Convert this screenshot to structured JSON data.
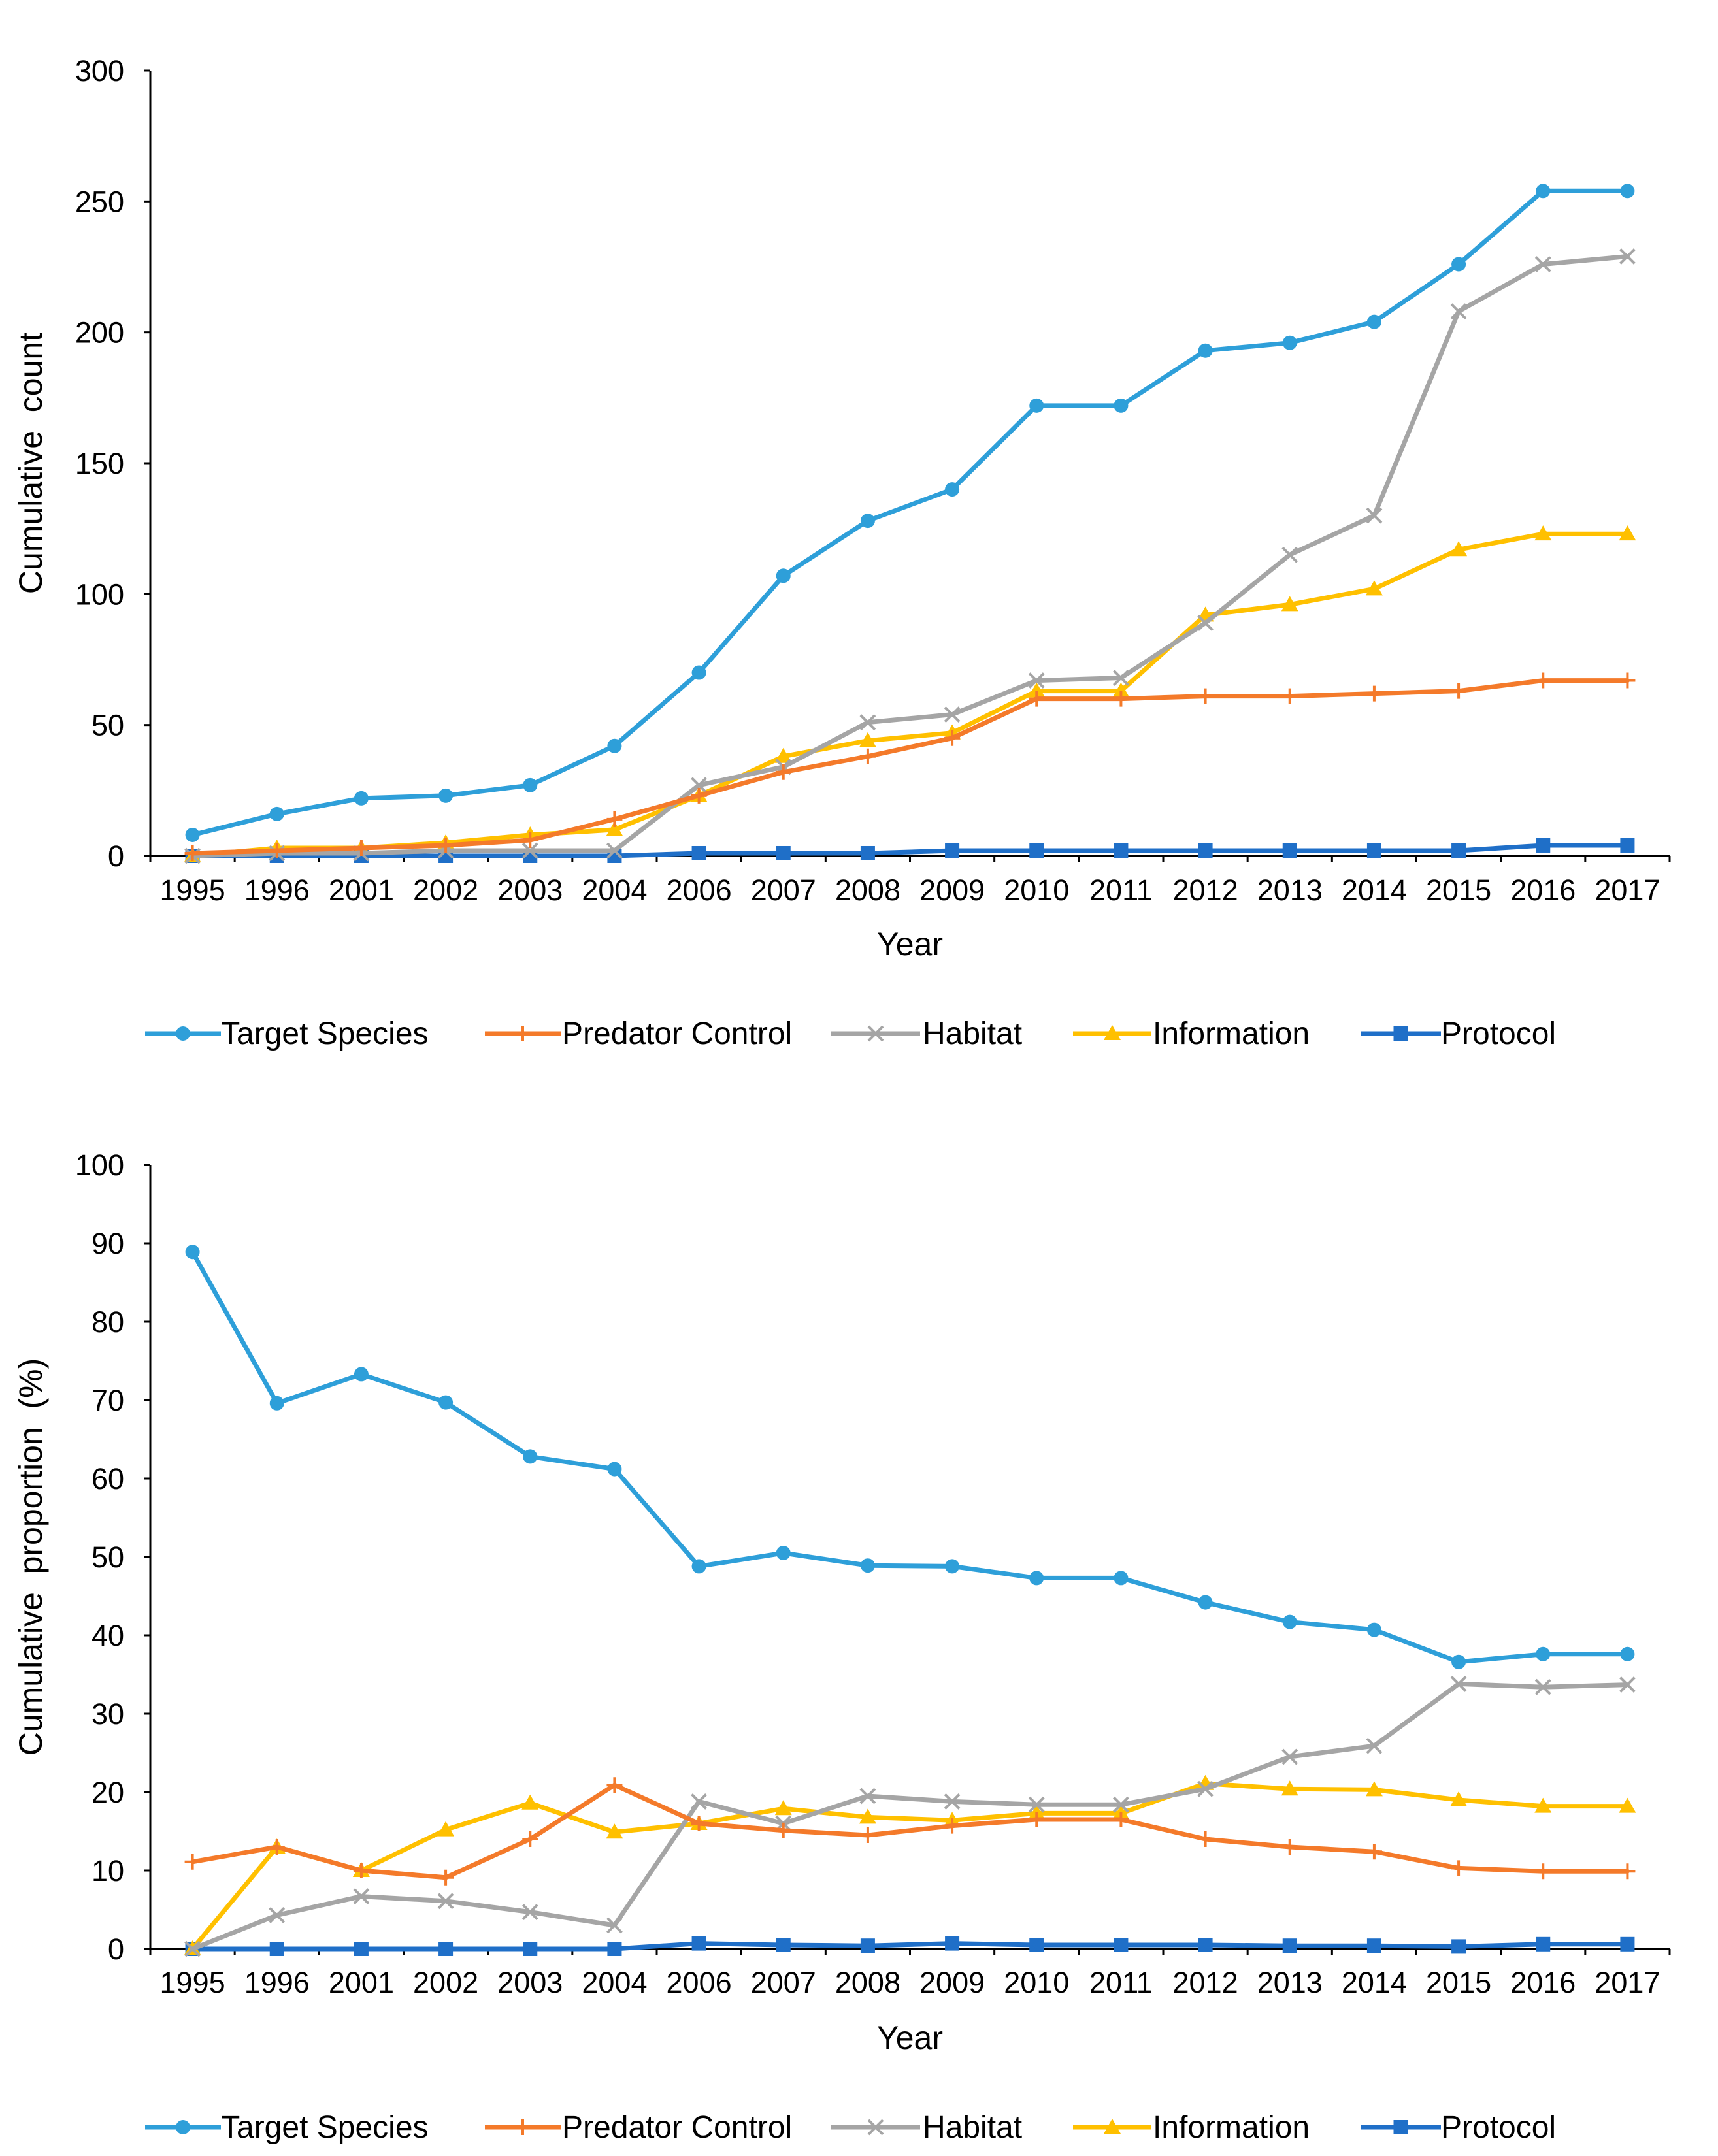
{
  "colors": {
    "Target Species": "#2E9FD9",
    "Predator Control": "#F47A2A",
    "Habitat": "#A5A5A5",
    "Information": "#FFC000",
    "Protocol": "#1F6FC8"
  },
  "markers": {
    "Target Species": "circle",
    "Predator Control": "plus",
    "Habitat": "cross",
    "Information": "triangle",
    "Protocol": "square"
  },
  "chart_data": [
    {
      "type": "line",
      "title": "",
      "xlabel": "Year",
      "ylabel": "Cumulative  count",
      "ylim": [
        0,
        300
      ],
      "ytick_step": 50,
      "legend_position": "bottom",
      "categories": [
        "1995",
        "1996",
        "2001",
        "2002",
        "2003",
        "2004",
        "2006",
        "2007",
        "2008",
        "2009",
        "2010",
        "2011",
        "2012",
        "2013",
        "2014",
        "2015",
        "2016",
        "2017"
      ],
      "series": [
        {
          "name": "Target Species",
          "values": [
            8,
            16,
            22,
            23,
            27,
            42,
            70,
            107,
            128,
            140,
            172,
            172,
            193,
            196,
            204,
            226,
            254,
            254
          ]
        },
        {
          "name": "Predator Control",
          "values": [
            1,
            2,
            3,
            4,
            6,
            14,
            23,
            32,
            38,
            45,
            60,
            60,
            61,
            61,
            62,
            63,
            67,
            67
          ]
        },
        {
          "name": "Habitat",
          "values": [
            0,
            1,
            1,
            2,
            2,
            2,
            27,
            34,
            51,
            54,
            67,
            68,
            89,
            115,
            130,
            208,
            226,
            229
          ]
        },
        {
          "name": "Information",
          "values": [
            0,
            3,
            3,
            5,
            8,
            10,
            23,
            38,
            44,
            47,
            63,
            63,
            92,
            96,
            102,
            117,
            123,
            123
          ]
        },
        {
          "name": "Protocol",
          "values": [
            0,
            0,
            0,
            0,
            0,
            0,
            1,
            1,
            1,
            2,
            2,
            2,
            2,
            2,
            2,
            2,
            4,
            4
          ]
        }
      ]
    },
    {
      "type": "line",
      "title": "",
      "xlabel": "Year",
      "ylabel": "Cumulative  proportion  (%)",
      "ylim": [
        0,
        100
      ],
      "ytick_step": 10,
      "legend_position": "bottom",
      "categories": [
        "1995",
        "1996",
        "2001",
        "2002",
        "2003",
        "2004",
        "2006",
        "2007",
        "2008",
        "2009",
        "2010",
        "2011",
        "2012",
        "2013",
        "2014",
        "2015",
        "2016",
        "2017"
      ],
      "series": [
        {
          "name": "Target Species",
          "values": [
            88.9,
            69.6,
            73.3,
            69.7,
            62.8,
            61.2,
            48.8,
            50.5,
            48.9,
            48.8,
            47.3,
            47.3,
            44.2,
            41.7,
            40.7,
            36.6,
            37.6,
            37.6
          ]
        },
        {
          "name": "Predator Control",
          "values": [
            11.1,
            13.0,
            10.0,
            9.1,
            14.0,
            20.9,
            16.0,
            15.1,
            14.5,
            15.7,
            16.5,
            16.5,
            14.0,
            13.0,
            12.4,
            10.3,
            9.9,
            9.9
          ]
        },
        {
          "name": "Habitat",
          "values": [
            0,
            4.3,
            6.7,
            6.1,
            4.7,
            3.0,
            18.8,
            16.0,
            19.5,
            18.8,
            18.4,
            18.4,
            20.4,
            24.5,
            25.9,
            33.8,
            33.4,
            33.7
          ]
        },
        {
          "name": "Information",
          "values": [
            0,
            13.0,
            10.0,
            15.2,
            18.6,
            14.9,
            16.0,
            17.9,
            16.8,
            16.4,
            17.3,
            17.3,
            21.1,
            20.4,
            20.3,
            19.0,
            18.2,
            18.2
          ]
        },
        {
          "name": "Protocol",
          "values": [
            0,
            0,
            0,
            0,
            0,
            0,
            0.7,
            0.5,
            0.4,
            0.7,
            0.5,
            0.5,
            0.5,
            0.4,
            0.4,
            0.3,
            0.6,
            0.6
          ]
        }
      ]
    }
  ]
}
